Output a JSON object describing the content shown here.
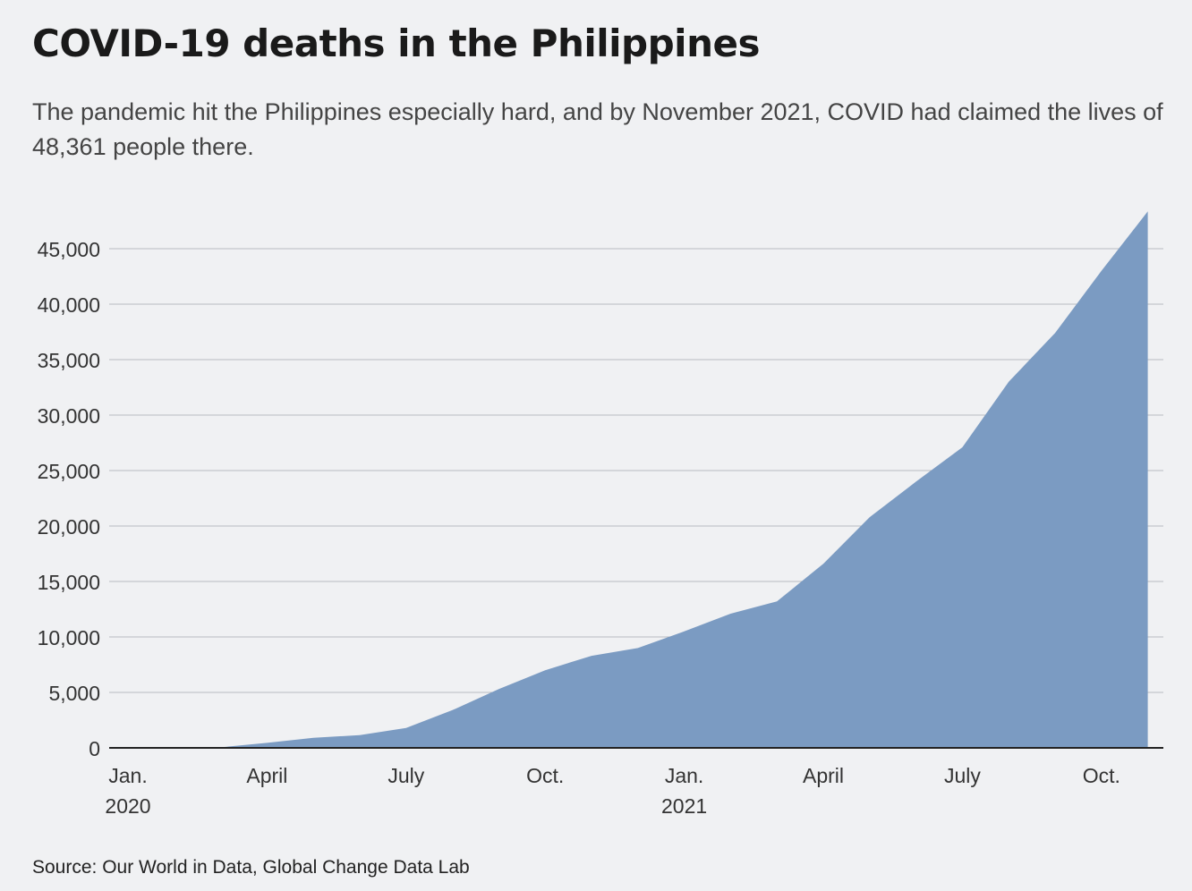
{
  "title": "COVID-19 deaths in the Philippines",
  "subtitle": "The pandemic hit the Philippines especially hard, and by November 2021, COVID had claimed the lives of 48,361 people there.",
  "source": "Source: Our World in Data, Global Change Data Lab",
  "colors": {
    "area": "#7b9bc2",
    "grid": "#b9bcc0",
    "axis": "#222222",
    "background": "#f0f1f3"
  },
  "chart_data": {
    "type": "area",
    "title": "COVID-19 deaths in the Philippines",
    "xlabel": "",
    "ylabel": "",
    "ylim": [
      0,
      50000
    ],
    "xlim": [
      "2020-01",
      "2021-11"
    ],
    "grid": true,
    "yticks": [
      {
        "value": 0,
        "label": "0"
      },
      {
        "value": 5000,
        "label": "5,000"
      },
      {
        "value": 10000,
        "label": "10,000"
      },
      {
        "value": 15000,
        "label": "15,000"
      },
      {
        "value": 20000,
        "label": "20,000"
      },
      {
        "value": 25000,
        "label": "25,000"
      },
      {
        "value": 30000,
        "label": "30,000"
      },
      {
        "value": 35000,
        "label": "35,000"
      },
      {
        "value": 40000,
        "label": "40,000"
      },
      {
        "value": 45000,
        "label": "45,000"
      }
    ],
    "xticks": [
      {
        "date": "2020-01",
        "label": "Jan.",
        "sublabel": "2020"
      },
      {
        "date": "2020-04",
        "label": "April",
        "sublabel": ""
      },
      {
        "date": "2020-07",
        "label": "July",
        "sublabel": ""
      },
      {
        "date": "2020-10",
        "label": "Oct.",
        "sublabel": ""
      },
      {
        "date": "2021-01",
        "label": "Jan.",
        "sublabel": "2021"
      },
      {
        "date": "2021-04",
        "label": "April",
        "sublabel": ""
      },
      {
        "date": "2021-07",
        "label": "July",
        "sublabel": ""
      },
      {
        "date": "2021-10",
        "label": "Oct.",
        "sublabel": ""
      }
    ],
    "series": [
      {
        "points": [
          {
            "x": "2020-01",
            "y": 0
          },
          {
            "x": "2020-03",
            "y": 50
          },
          {
            "x": "2020-04",
            "y": 450
          },
          {
            "x": "2020-05",
            "y": 900
          },
          {
            "x": "2020-06",
            "y": 1150
          },
          {
            "x": "2020-07",
            "y": 1800
          },
          {
            "x": "2020-08",
            "y": 3400
          },
          {
            "x": "2020-09",
            "y": 5300
          },
          {
            "x": "2020-10",
            "y": 7000
          },
          {
            "x": "2020-11",
            "y": 8300
          },
          {
            "x": "2020-12",
            "y": 9000
          },
          {
            "x": "2021-01",
            "y": 10500
          },
          {
            "x": "2021-02",
            "y": 12100
          },
          {
            "x": "2021-03",
            "y": 13200
          },
          {
            "x": "2021-04",
            "y": 16600
          },
          {
            "x": "2021-05",
            "y": 20800
          },
          {
            "x": "2021-06",
            "y": 24000
          },
          {
            "x": "2021-07",
            "y": 27100
          },
          {
            "x": "2021-08",
            "y": 33000
          },
          {
            "x": "2021-09",
            "y": 37400
          },
          {
            "x": "2021-10",
            "y": 43000
          },
          {
            "x": "2021-11",
            "y": 48361
          }
        ]
      }
    ]
  }
}
